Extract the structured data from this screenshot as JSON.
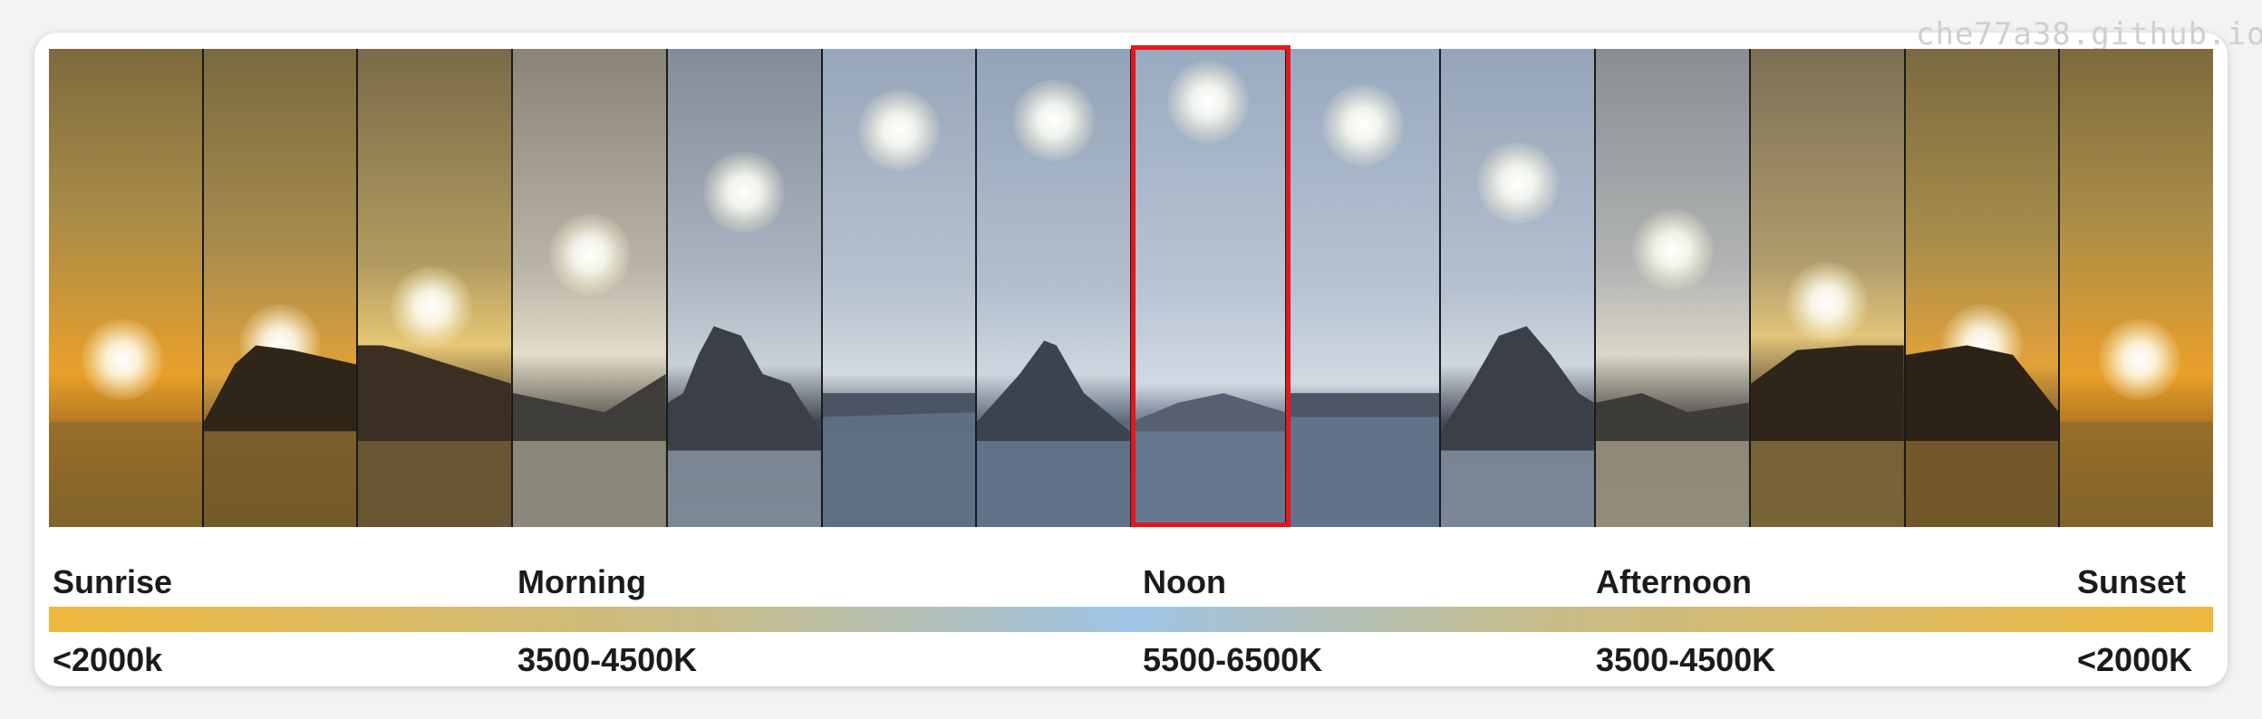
{
  "watermark": "che77a38.github.io",
  "times": [
    "Sunrise",
    "Morning",
    "Noon",
    "Afternoon",
    "Sunset"
  ],
  "temps": [
    "<2000k",
    "3500-4500K",
    "5500-6500K",
    "3500-4500K",
    "<2000K"
  ],
  "colors": {
    "warm": "#f0b93e",
    "cool": "#9fc4e6",
    "highlight": "#e4161e"
  }
}
